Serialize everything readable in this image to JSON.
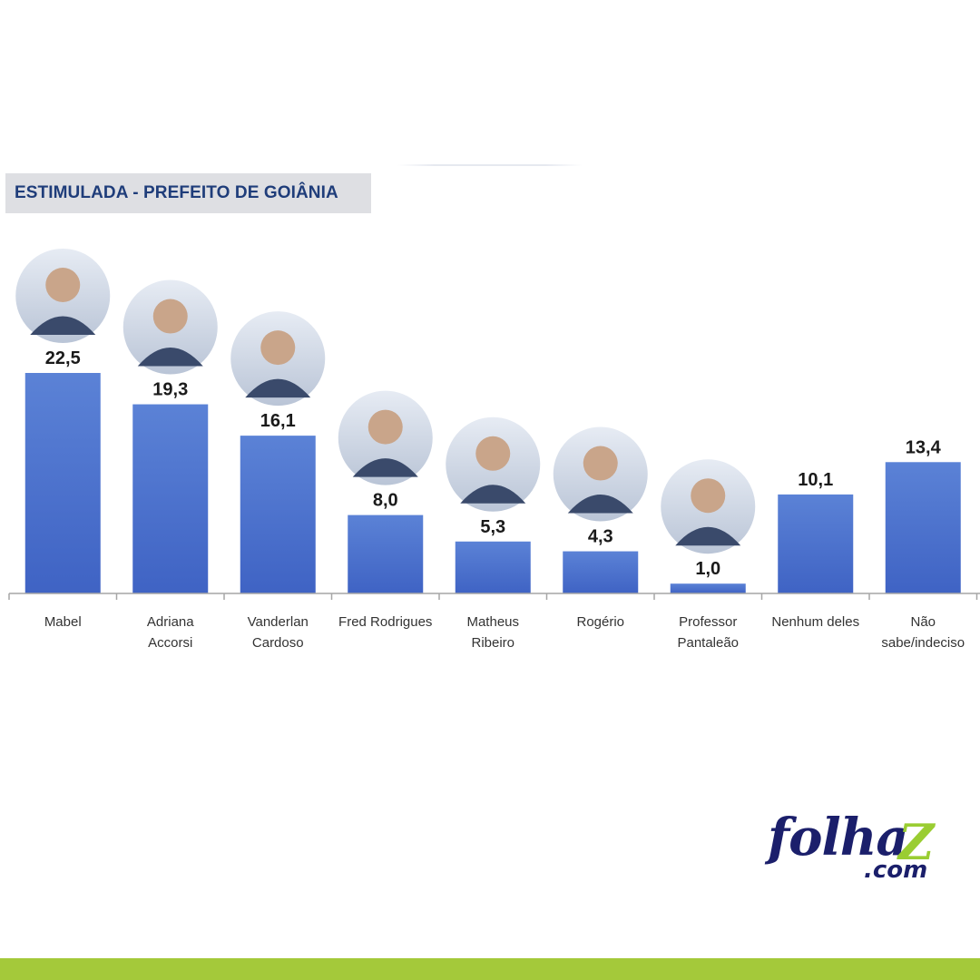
{
  "chart_data": {
    "type": "bar",
    "title": "ESTIMULADA - PREFEITO DE GOIÂNIA",
    "categories": [
      "Mabel",
      "Adriana\nAccorsi",
      "Vanderlan\nCardoso",
      "Fred Rodrigues",
      "Matheus\nRibeiro",
      "Rogério",
      "Professor\nPantaleão",
      "Nenhum deles",
      "Não\nsabe/indeciso"
    ],
    "values": [
      22.5,
      19.3,
      16.1,
      8.0,
      5.3,
      4.3,
      1.0,
      10.1,
      13.4
    ],
    "value_labels": [
      "22,5",
      "19,3",
      "16,1",
      "8,0",
      "5,3",
      "4,3",
      "1,0",
      "10,1",
      "13,4"
    ],
    "has_photo": [
      true,
      true,
      true,
      true,
      true,
      true,
      true,
      false,
      false
    ],
    "ylim": [
      0,
      22.5
    ],
    "grid": false,
    "bar_color_top": "#5b82d6",
    "bar_color_bottom": "#3f63c4"
  },
  "logo": {
    "main": "folha",
    "accent": "Z",
    "suffix": ".com",
    "main_color": "#1b1f6b",
    "accent_color": "#9acd32"
  },
  "footer": {
    "color": "#a4c93a"
  }
}
